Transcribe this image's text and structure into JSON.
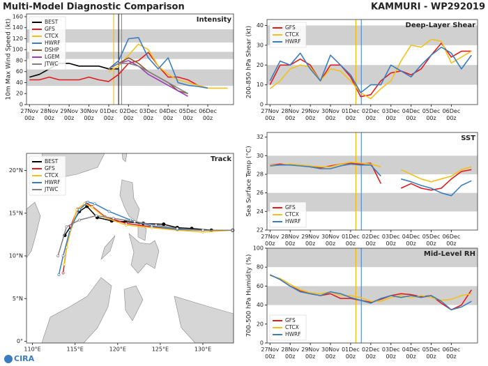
{
  "header": {
    "title": "Multi-Model Diagnostic Comparison",
    "storm": "KAMMURI - WP292019",
    "logo": "CIRA"
  },
  "chart_data": [
    {
      "type": "line",
      "title": "Intensity",
      "ylabel": "10m Max Wind Speed (kt)",
      "x": [
        0,
        0.5,
        1,
        1.5,
        2,
        2.5,
        3,
        3.5,
        4,
        4.5,
        5,
        5.5,
        6,
        6.5,
        7,
        7.5,
        8,
        8.5,
        9,
        9.5,
        10
      ],
      "xlim": [
        -0.15,
        10.3
      ],
      "xticks": [
        {
          "value": 0,
          "label": "27Nov 00z"
        },
        {
          "value": 1,
          "label": "28Nov 00z"
        },
        {
          "value": 2,
          "label": "29Nov 00z"
        },
        {
          "value": 3,
          "label": "30Nov 00z"
        },
        {
          "value": 4,
          "label": "01Dec 00z"
        },
        {
          "value": 5,
          "label": "02Dec 00z"
        },
        {
          "value": 6,
          "label": "03Dec 00z"
        },
        {
          "value": 7,
          "label": "04Dec 00z"
        },
        {
          "value": 8,
          "label": "05Dec 00z"
        },
        {
          "value": 9,
          "label": "06Dec 00z"
        }
      ],
      "ylim": [
        0,
        165
      ],
      "yticks": [
        0,
        20,
        40,
        60,
        80,
        100,
        120,
        140,
        160
      ],
      "bands": [
        [
          34,
          64
        ],
        [
          83,
          96
        ],
        [
          113,
          137
        ]
      ],
      "vlines": [
        {
          "x": 4.25,
          "color": "#f0b400"
        },
        {
          "x": 4.5,
          "color": "#000000"
        },
        {
          "x": 4.65,
          "color": "#808080"
        }
      ],
      "legend": "upper left",
      "series": [
        {
          "name": "BEST",
          "color": "#000000",
          "values": [
            50,
            55,
            65,
            75,
            75,
            70,
            70,
            70,
            65,
            65,
            null,
            null,
            null,
            null,
            null,
            null,
            null,
            null,
            null,
            null,
            null
          ]
        },
        {
          "name": "GFS",
          "color": "#e31a1c",
          "values": [
            45,
            45,
            50,
            45,
            45,
            45,
            50,
            45,
            42,
            55,
            75,
            80,
            95,
            70,
            50,
            50,
            45,
            35,
            30,
            null,
            null
          ]
        },
        {
          "name": "CTCX",
          "color": "#f2c01d",
          "values": [
            null,
            null,
            null,
            null,
            null,
            null,
            null,
            null,
            60,
            70,
            90,
            110,
            100,
            70,
            55,
            45,
            40,
            35,
            30,
            30,
            30
          ]
        },
        {
          "name": "HWRF",
          "color": "#3a7dbf",
          "values": [
            null,
            null,
            null,
            null,
            null,
            null,
            null,
            null,
            65,
            80,
            120,
            122,
            85,
            65,
            85,
            40,
            35,
            33,
            30,
            null,
            null
          ]
        },
        {
          "name": "DSHP",
          "color": "#8c5a2b",
          "values": [
            null,
            null,
            null,
            null,
            null,
            null,
            null,
            null,
            65,
            75,
            85,
            75,
            60,
            50,
            40,
            25,
            20,
            null,
            null,
            null,
            null
          ]
        },
        {
          "name": "LGEM",
          "color": "#9b3fb0",
          "values": [
            null,
            null,
            null,
            null,
            null,
            null,
            null,
            null,
            65,
            75,
            80,
            70,
            55,
            45,
            35,
            25,
            15,
            null,
            null,
            null,
            null
          ]
        },
        {
          "name": "JTWC",
          "color": "#808080",
          "values": [
            null,
            null,
            null,
            null,
            null,
            null,
            null,
            null,
            65,
            75,
            75,
            70,
            60,
            50,
            40,
            30,
            20,
            null,
            null,
            null,
            null
          ]
        }
      ]
    },
    {
      "type": "track",
      "title": "Track",
      "xlim": [
        109.3,
        133.6
      ],
      "ylim": [
        -0.2,
        22
      ],
      "xticks": [
        {
          "value": 110,
          "label": "110°E"
        },
        {
          "value": 115,
          "label": "115°E"
        },
        {
          "value": 120,
          "label": "120°E"
        },
        {
          "value": 125,
          "label": "125°E"
        },
        {
          "value": 130,
          "label": "130°E"
        }
      ],
      "yticks": [
        {
          "value": 0,
          "label": "0°"
        },
        {
          "value": 5,
          "label": "5°N"
        },
        {
          "value": 10,
          "label": "10°N"
        },
        {
          "value": 15,
          "label": "15°N"
        },
        {
          "value": 20,
          "label": "20°N"
        }
      ],
      "legend": "upper left",
      "series": [
        {
          "name": "BEST",
          "color": "#000000",
          "x": [
            133.5,
            131,
            128.7,
            127,
            125.4,
            123,
            120.9,
            119.3,
            117.6,
            116.4,
            115.5,
            114.5,
            113.8
          ],
          "values": [
            13,
            13,
            13.2,
            13.3,
            13.7,
            13.8,
            14,
            14.1,
            14.5,
            15.8,
            15.2,
            13.5,
            12.4
          ]
        },
        {
          "name": "GFS",
          "color": "#e31a1c",
          "x": [
            133.5,
            130,
            127,
            124,
            121,
            118.5,
            117,
            116.3,
            115.3,
            114.5,
            114,
            113.6
          ],
          "values": [
            13,
            13,
            13.1,
            13.4,
            13.8,
            14.6,
            15.8,
            16.2,
            15.5,
            13.5,
            11,
            8
          ]
        },
        {
          "name": "CTCX",
          "color": "#f2c01d",
          "x": [
            133.5,
            130,
            127,
            124,
            121,
            118.5,
            117,
            116.1,
            115.2,
            114.6,
            114,
            113.7
          ],
          "values": [
            13,
            12.8,
            13,
            13.3,
            13.6,
            14.5,
            15.7,
            16.1,
            15.4,
            13.4,
            11,
            9
          ]
        },
        {
          "name": "HWRF",
          "color": "#3a7dbf",
          "x": [
            133.5,
            130,
            127,
            124,
            121.5,
            119,
            117.3,
            116.5,
            115.5,
            114.4,
            113.6,
            113.1
          ],
          "values": [
            13,
            13,
            13.1,
            13.5,
            14.2,
            15.2,
            16.1,
            16.3,
            15.4,
            13,
            10,
            7.8
          ]
        },
        {
          "name": "JTWC",
          "color": "#808080",
          "x": [
            133.5,
            130,
            127,
            124.5,
            122,
            119.5,
            117.5,
            115.5,
            114,
            113
          ],
          "values": [
            13,
            13,
            13.2,
            13.6,
            14,
            14.4,
            14.7,
            14.2,
            13.4,
            10
          ]
        }
      ]
    },
    {
      "type": "line",
      "title": "Deep-Layer Shear",
      "ylabel": "200-850 hPa Shear (kt)",
      "x": [
        0,
        0.5,
        1,
        1.5,
        2,
        2.5,
        3,
        3.5,
        4,
        4.5,
        5,
        5.5,
        6,
        6.5,
        7,
        7.5,
        8,
        8.5,
        9,
        9.5,
        10
      ],
      "xlim": [
        -0.15,
        10.3
      ],
      "xticks": [
        {
          "value": 0,
          "label": "27Nov 00z"
        },
        {
          "value": 1,
          "label": "28Nov 00z"
        },
        {
          "value": 2,
          "label": "29Nov 00z"
        },
        {
          "value": 3,
          "label": "30Nov 00z"
        },
        {
          "value": 4,
          "label": "01Dec 00z"
        },
        {
          "value": 5,
          "label": "02Dec 00z"
        },
        {
          "value": 6,
          "label": "03Dec 00z"
        },
        {
          "value": 7,
          "label": "04Dec 00z"
        },
        {
          "value": 8,
          "label": "05Dec 00z"
        },
        {
          "value": 9,
          "label": "06Dec 00z"
        }
      ],
      "ylim": [
        0,
        43
      ],
      "yticks": [
        0,
        10,
        20,
        30,
        40
      ],
      "bands": [
        [
          10,
          20
        ],
        [
          30,
          40
        ]
      ],
      "vlines": [
        {
          "x": 4.26,
          "color": "#f0b400"
        },
        {
          "x": 4.53,
          "color": "#3a7dbf"
        }
      ],
      "legend": "upper left",
      "series": [
        {
          "name": "GFS",
          "color": "#e31a1c",
          "values": [
            10,
            20,
            20,
            23,
            20,
            12,
            20,
            20,
            14,
            4,
            5,
            12,
            16,
            17,
            15,
            18,
            25,
            31,
            24,
            27,
            27
          ]
        },
        {
          "name": "CTCX",
          "color": "#f2c01d",
          "values": [
            8,
            12,
            18,
            20,
            19,
            12,
            18,
            17,
            12,
            6,
            3,
            8,
            12,
            22,
            30,
            29,
            33,
            32,
            21,
            24,
            27
          ]
        },
        {
          "name": "HWRF",
          "color": "#3a7dbf",
          "values": [
            12,
            22,
            20,
            26,
            18,
            12,
            25,
            20,
            15,
            6,
            10,
            10,
            20,
            17,
            14,
            20,
            25,
            29,
            26,
            18,
            25
          ]
        }
      ]
    },
    {
      "type": "line",
      "title": "SST",
      "ylabel": "Sea Surface Temp (°C)",
      "x": [
        0,
        0.5,
        1,
        1.5,
        2,
        2.5,
        3,
        3.5,
        4,
        4.5,
        5,
        5.5,
        6,
        6.5,
        7,
        7.5,
        8,
        8.5,
        9,
        9.5,
        10
      ],
      "xlim": [
        -0.15,
        10.3
      ],
      "xticks": [
        {
          "value": 0,
          "label": "27Nov 00z"
        },
        {
          "value": 1,
          "label": "28Nov 00z"
        },
        {
          "value": 2,
          "label": "29Nov 00z"
        },
        {
          "value": 3,
          "label": "30Nov 00z"
        },
        {
          "value": 4,
          "label": "01Dec 00z"
        },
        {
          "value": 5,
          "label": "02Dec 00z"
        },
        {
          "value": 6,
          "label": "03Dec 00z"
        },
        {
          "value": 7,
          "label": "04Dec 00z"
        },
        {
          "value": 8,
          "label": "05Dec 00z"
        },
        {
          "value": 9,
          "label": "06Dec 00z"
        }
      ],
      "ylim": [
        22,
        32.5
      ],
      "yticks": [
        22,
        24,
        26,
        28,
        30,
        32
      ],
      "bands": [
        [
          24,
          26
        ],
        [
          28,
          30
        ]
      ],
      "vlines": [
        {
          "x": 4.26,
          "color": "#f0b400"
        },
        {
          "x": 4.53,
          "color": "#3a7dbf"
        }
      ],
      "legend": "lower left",
      "series": [
        {
          "name": "GFS",
          "color": "#e31a1c",
          "values": [
            29,
            29.1,
            29,
            29,
            28.8,
            28.7,
            28.9,
            29.1,
            29.2,
            29.1,
            29.2,
            27,
            null,
            26.5,
            27,
            26.5,
            26.3,
            26.5,
            27.5,
            28.3,
            28.5
          ]
        },
        {
          "name": "CTCX",
          "color": "#f2c01d",
          "values": [
            29,
            29,
            29.1,
            29,
            28.9,
            28.8,
            28.8,
            29.1,
            29.3,
            29.2,
            29.1,
            28.8,
            null,
            28.5,
            28,
            27.5,
            27.2,
            27.5,
            27.8,
            28.5,
            28.8
          ]
        },
        {
          "name": "HWRF",
          "color": "#3a7dbf",
          "values": [
            28.9,
            29,
            29,
            28.9,
            28.8,
            28.6,
            28.6,
            28.9,
            29.1,
            29,
            29,
            27.8,
            null,
            27.5,
            27.2,
            26.8,
            26.5,
            26,
            25.7,
            26.8,
            27.3
          ]
        }
      ]
    },
    {
      "type": "line",
      "title": "Mid-Level RH",
      "ylabel": "700-500 hPa Humidity (%)",
      "x": [
        0,
        0.5,
        1,
        1.5,
        2,
        2.5,
        3,
        3.5,
        4,
        4.5,
        5,
        5.5,
        6,
        6.5,
        7,
        7.5,
        8,
        8.5,
        9,
        9.5,
        10
      ],
      "xlim": [
        -0.15,
        10.3
      ],
      "xticks": [
        {
          "value": 0,
          "label": "27Nov 00z"
        },
        {
          "value": 1,
          "label": "28Nov 00z"
        },
        {
          "value": 2,
          "label": "29Nov 00z"
        },
        {
          "value": 3,
          "label": "30Nov 00z"
        },
        {
          "value": 4,
          "label": "01Dec 00z"
        },
        {
          "value": 5,
          "label": "02Dec 00z"
        },
        {
          "value": 6,
          "label": "03Dec 00z"
        },
        {
          "value": 7,
          "label": "04Dec 00z"
        },
        {
          "value": 8,
          "label": "05Dec 00z"
        },
        {
          "value": 9,
          "label": "06Dec 00z"
        }
      ],
      "ylim": [
        0,
        100
      ],
      "yticks": [
        0,
        20,
        40,
        60,
        80,
        100
      ],
      "bands": [
        [
          40,
          60
        ],
        [
          80,
          100
        ]
      ],
      "vlines": [
        {
          "x": 4.26,
          "color": "#f0b400"
        },
        {
          "x": 4.53,
          "color": "#3a7dbf"
        }
      ],
      "legend": "lower left",
      "series": [
        {
          "name": "GFS",
          "color": "#e31a1c",
          "values": [
            72,
            67,
            60,
            55,
            52,
            50,
            52,
            47,
            47,
            45,
            43,
            46,
            50,
            52,
            51,
            49,
            50,
            42,
            35,
            40,
            56
          ]
        },
        {
          "name": "CTCX",
          "color": "#f2c01d",
          "values": [
            71,
            68,
            62,
            56,
            53,
            52,
            54,
            50,
            50,
            48,
            44,
            44,
            48,
            50,
            48,
            50,
            48,
            45,
            46,
            50,
            52
          ]
        },
        {
          "name": "HWRF",
          "color": "#3a7dbf",
          "values": [
            72,
            67,
            60,
            54,
            52,
            50,
            54,
            52,
            48,
            45,
            42,
            47,
            50,
            48,
            50,
            48,
            50,
            44,
            35,
            38,
            44
          ]
        }
      ]
    }
  ]
}
